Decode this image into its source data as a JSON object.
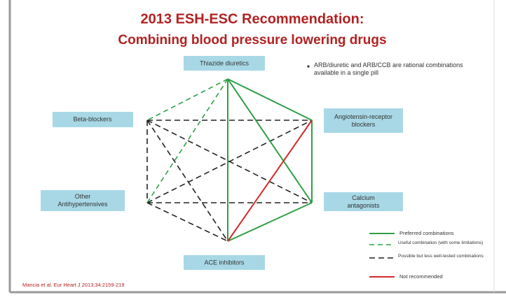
{
  "header": {
    "title": "2013 ESH-ESC Recommendation:",
    "subtitle": "Combining blood pressure lowering drugs"
  },
  "note": "ARB/diuretic and ARB/CCB are rational combinations available in a single pill",
  "nodes": [
    {
      "label": "Thiazide diuretics"
    },
    {
      "label": "Beta-blockers"
    },
    {
      "label": "Angiotensin-receptor blockers"
    },
    {
      "label": "Other Antihypertensives"
    },
    {
      "label": "Calcium antagonists"
    },
    {
      "label": "ACE inhibitors"
    }
  ],
  "legend": [
    {
      "label": "Preferred combinations"
    },
    {
      "label": "Useful combination (with some limitations)"
    },
    {
      "label": "Possible but less well-tested combinations"
    },
    {
      "label": "Not recommended"
    }
  ],
  "footer": "Mancia et al. Eur Heart J 2013;34:2159-219"
}
